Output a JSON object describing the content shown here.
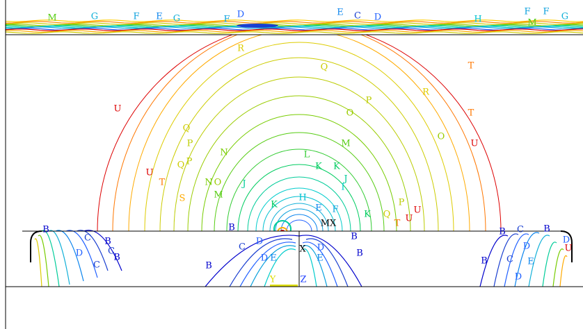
{
  "contour_labels": [
    "M",
    "G",
    "F",
    "E",
    "G",
    "F",
    "D",
    "E",
    "C",
    "D",
    "H",
    "F",
    "F",
    "M",
    "G",
    "R",
    "Q",
    "T",
    "U",
    "R",
    "P",
    "O",
    "T",
    "U",
    "Q",
    "P",
    "O",
    "N",
    "M",
    "L",
    "K",
    "K",
    "J",
    "I",
    "U",
    "T",
    "Q",
    "P",
    "N",
    "M",
    "O",
    "J",
    "S",
    "K",
    "H",
    "E",
    "F",
    "K",
    "Q",
    "P",
    "T",
    "U",
    "U",
    "MX",
    "X",
    "Y",
    "Z",
    "B",
    "C",
    "B",
    "C",
    "B",
    "D",
    "C",
    "B",
    "C",
    "D",
    "B",
    "B",
    "E",
    "D",
    "E",
    "D",
    "B",
    "B",
    "C",
    "D",
    "B",
    "C",
    "E",
    "D",
    "U",
    "D",
    "B"
  ]
}
